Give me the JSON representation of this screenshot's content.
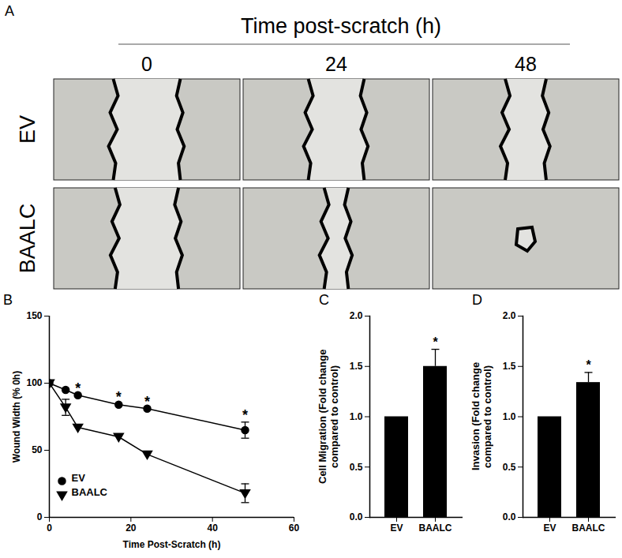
{
  "panel_a": {
    "panel": "A",
    "title": "Time post-scratch (h)",
    "columns": [
      "0",
      "24",
      "48"
    ],
    "rows": [
      "EV",
      "BAALC"
    ]
  },
  "chart_data": [
    {
      "panel": "B",
      "type": "line",
      "xlabel": "Time Post-Scratch (h)",
      "ylabel": "Wound Width (% 0h)",
      "x": [
        0,
        4,
        7,
        17,
        24,
        48
      ],
      "series": [
        {
          "name": "EV",
          "color": "#000000",
          "marker": "circle",
          "values": [
            100,
            95,
            91,
            84,
            81,
            65
          ],
          "error": [
            0,
            0,
            0,
            0,
            0,
            6
          ]
        },
        {
          "name": "BAALC",
          "color": "#000000",
          "marker": "triangle-down",
          "values": [
            100,
            82,
            67,
            60,
            47,
            18
          ],
          "error": [
            0,
            6,
            0,
            0,
            0,
            7
          ]
        }
      ],
      "annotations": [
        {
          "x": 7,
          "text": "*"
        },
        {
          "x": 17,
          "text": "*"
        },
        {
          "x": 24,
          "text": "*"
        },
        {
          "x": 48,
          "text": "*"
        }
      ],
      "xlim": [
        0,
        60
      ],
      "xticks": [
        0,
        20,
        40,
        60
      ],
      "ylim": [
        0,
        150
      ],
      "yticks": [
        0,
        50,
        100,
        150
      ],
      "legend": "lower left"
    },
    {
      "panel": "C",
      "type": "bar",
      "ylabel": "Cell Migration (Fold change\ncompared to control)",
      "categories": [
        "EV",
        "BAALC"
      ],
      "values": [
        1.0,
        1.5
      ],
      "error": [
        0,
        0.17
      ],
      "color": "#000000",
      "annotations": [
        {
          "x": "BAALC",
          "text": "*"
        }
      ],
      "ylim": [
        0,
        2
      ],
      "yticks": [
        {
          "value": 0,
          "label": "0.0"
        },
        {
          "value": 0.5,
          "label": "0.5"
        },
        {
          "value": 1,
          "label": "1.0"
        },
        {
          "value": 1.5,
          "label": "1.5"
        },
        {
          "value": 2,
          "label": "2.0"
        }
      ]
    },
    {
      "panel": "D",
      "type": "bar",
      "ylabel": "Invasion (Fold change\ncompared to control)",
      "categories": [
        "EV",
        "BAALC"
      ],
      "values": [
        1.0,
        1.34
      ],
      "error": [
        0,
        0.1
      ],
      "color": "#000000",
      "annotations": [
        {
          "x": "BAALC",
          "text": "*"
        }
      ],
      "ylim": [
        0,
        2
      ],
      "yticks": [
        {
          "value": 0,
          "label": "0.0"
        },
        {
          "value": 0.5,
          "label": "0.5"
        },
        {
          "value": 1,
          "label": "1.0"
        },
        {
          "value": 1.5,
          "label": "1.5"
        },
        {
          "value": 2,
          "label": "2.0"
        }
      ]
    }
  ]
}
